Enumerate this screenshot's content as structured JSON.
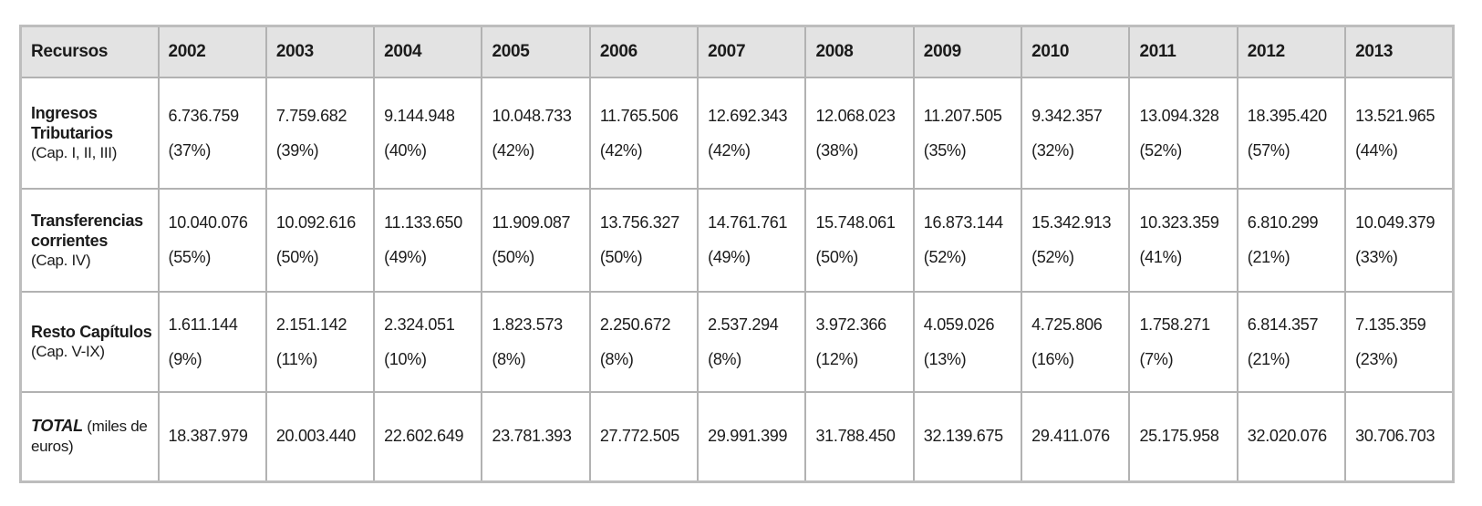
{
  "colors": {
    "background": "#ffffff",
    "header_bg": "#e3e3e3",
    "border": "#b2b2b2",
    "outer_border": "#bdbdbd",
    "text": "#1b1b1b"
  },
  "table": {
    "columns": [
      "Recursos",
      "2002",
      "2003",
      "2004",
      "2005",
      "2006",
      "2007",
      "2008",
      "2009",
      "2010",
      "2011",
      "2012",
      "2013"
    ],
    "rows": [
      {
        "label_lines": [
          "Ingresos",
          "Tributarios"
        ],
        "label_note": "(Cap. I, II, III)",
        "cells": [
          {
            "v": "6.736.759",
            "p": "(37%)"
          },
          {
            "v": "7.759.682",
            "p": "(39%)"
          },
          {
            "v": "9.144.948",
            "p": "(40%)"
          },
          {
            "v": "10.048.733",
            "p": "(42%)"
          },
          {
            "v": "11.765.506",
            "p": "(42%)"
          },
          {
            "v": "12.692.343",
            "p": "(42%)"
          },
          {
            "v": "12.068.023",
            "p": "(38%)"
          },
          {
            "v": "11.207.505",
            "p": "(35%)"
          },
          {
            "v": "9.342.357",
            "p": "(32%)"
          },
          {
            "v": "13.094.328",
            "p": "(52%)"
          },
          {
            "v": "18.395.420",
            "p": "(57%)"
          },
          {
            "v": "13.521.965",
            "p": "(44%)"
          }
        ]
      },
      {
        "label_lines": [
          "Transferencias",
          "corrientes"
        ],
        "label_note": "(Cap. IV)",
        "cells": [
          {
            "v": "10.040.076",
            "p": "(55%)"
          },
          {
            "v": "10.092.616",
            "p": "(50%)"
          },
          {
            "v": "11.133.650",
            "p": "(49%)"
          },
          {
            "v": "11.909.087",
            "p": "(50%)"
          },
          {
            "v": "13.756.327",
            "p": "(50%)"
          },
          {
            "v": "14.761.761",
            "p": "(49%)"
          },
          {
            "v": "15.748.061",
            "p": "(50%)"
          },
          {
            "v": "16.873.144",
            "p": "(52%)"
          },
          {
            "v": "15.342.913",
            "p": "(52%)"
          },
          {
            "v": "10.323.359",
            "p": "(41%)"
          },
          {
            "v": "6.810.299",
            "p": "(21%)"
          },
          {
            "v": "10.049.379",
            "p": "(33%)"
          }
        ]
      },
      {
        "label_lines": [
          "Resto Capítulos"
        ],
        "label_note": "(Cap. V-IX)",
        "cells": [
          {
            "v": "1.611.144",
            "p": "(9%)"
          },
          {
            "v": "2.151.142",
            "p": "(11%)"
          },
          {
            "v": "2.324.051",
            "p": "(10%)"
          },
          {
            "v": "1.823.573",
            "p": "(8%)"
          },
          {
            "v": "2.250.672",
            "p": "(8%)"
          },
          {
            "v": "2.537.294",
            "p": "(8%)"
          },
          {
            "v": "3.972.366",
            "p": "(12%)"
          },
          {
            "v": "4.059.026",
            "p": "(13%)"
          },
          {
            "v": "4.725.806",
            "p": "(16%)"
          },
          {
            "v": "1.758.271",
            "p": "(7%)"
          },
          {
            "v": "6.814.357",
            "p": "(21%)"
          },
          {
            "v": "7.135.359",
            "p": "(23%)"
          }
        ]
      },
      {
        "label_total": "TOTAL",
        "label_note_inline": "(miles de euros)",
        "cells": [
          {
            "v": "18.387.979"
          },
          {
            "v": "20.003.440"
          },
          {
            "v": "22.602.649"
          },
          {
            "v": "23.781.393"
          },
          {
            "v": "27.772.505"
          },
          {
            "v": "29.991.399"
          },
          {
            "v": "31.788.450"
          },
          {
            "v": "32.139.675"
          },
          {
            "v": "29.411.076"
          },
          {
            "v": "25.175.958"
          },
          {
            "v": "32.020.076"
          },
          {
            "v": "30.706.703"
          }
        ]
      }
    ]
  }
}
